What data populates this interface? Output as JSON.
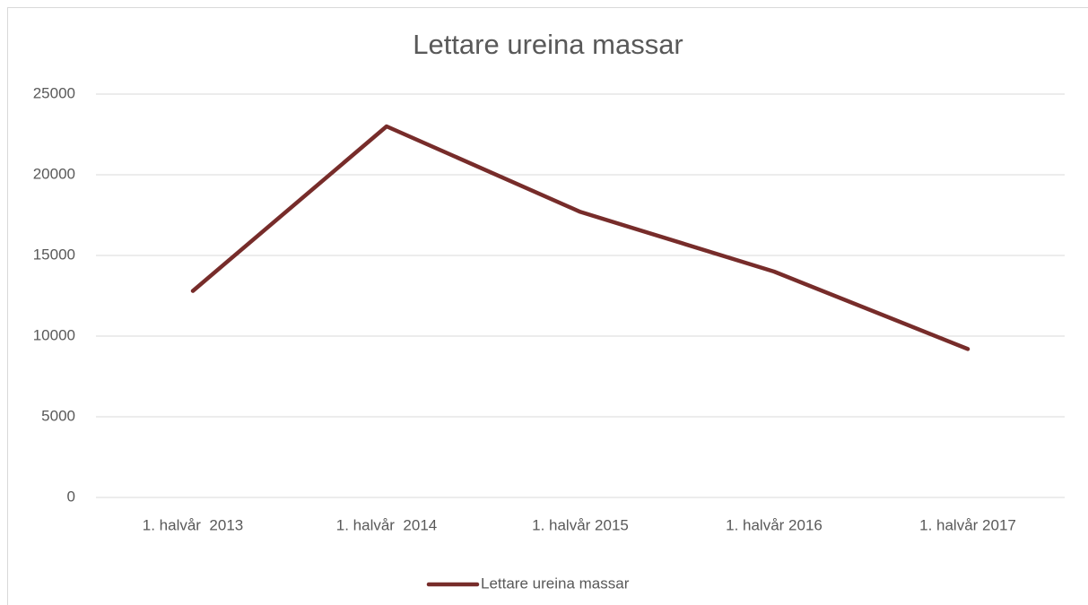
{
  "chart_data": {
    "type": "line",
    "title": "Lettare ureina massar",
    "categories": [
      "1. halvår  2013",
      "1. halvår  2014",
      "1. halvår 2015",
      "1. halvår 2016",
      "1. halvår 2017"
    ],
    "series": [
      {
        "name": "Lettare ureina massar",
        "color": "#772c2a",
        "values": [
          12800,
          23000,
          17700,
          14000,
          9200
        ]
      }
    ],
    "ylim": [
      0,
      25000
    ],
    "yticks": [
      0,
      5000,
      10000,
      15000,
      20000,
      25000
    ],
    "grid": true,
    "legend": "bottom"
  }
}
